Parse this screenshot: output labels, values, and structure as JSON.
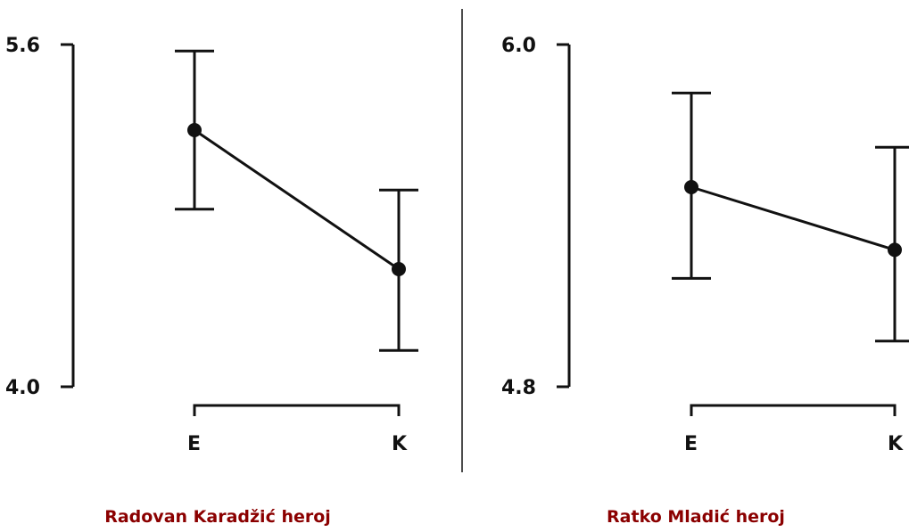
{
  "chart_data": [
    {
      "type": "line",
      "title": "Radovan Karadžić heroj",
      "categories": [
        "E",
        "K"
      ],
      "values": [
        5.2,
        4.55
      ],
      "error_low": [
        4.83,
        4.17
      ],
      "error_high": [
        5.57,
        4.92
      ],
      "ylim": [
        4.0,
        5.6
      ],
      "yticks": [
        "5.6",
        "4.0"
      ],
      "error_bars": true,
      "grid": false
    },
    {
      "type": "line",
      "title": "Ratko Mladić heroj",
      "categories": [
        "E",
        "K"
      ],
      "values": [
        5.5,
        5.28
      ],
      "error_low": [
        5.18,
        4.96
      ],
      "error_high": [
        5.83,
        5.64
      ],
      "ylim": [
        4.8,
        6.0
      ],
      "yticks": [
        "6.0",
        "4.8"
      ],
      "error_bars": true,
      "grid": false
    }
  ]
}
